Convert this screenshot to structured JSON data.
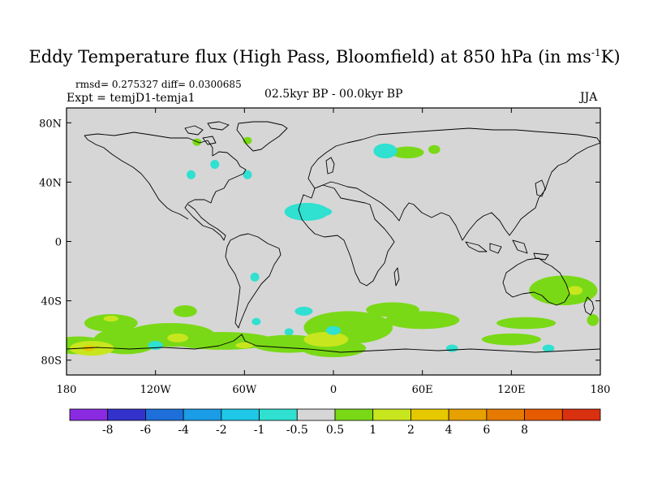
{
  "title_main": "Eddy Temperature flux (High Pass, Bloomfield) at 850 hPa (in ms",
  "title_sup": "-1",
  "title_end": "K)",
  "stats": "rmsd= 0.275327 diff= 0.0300685",
  "experiment": "Expt = temjD1-temja1",
  "period": "02.5kyr BP - 00.0kyr BP",
  "season": "JJA",
  "colors": {
    "background": "#d6d6d6",
    "land_outline": "#000000"
  },
  "chart_data": {
    "type": "heatmap",
    "projection": "cylindrical-equidistant",
    "field": "Eddy temperature flux difference (anomaly)",
    "lon_range": [
      -180,
      180
    ],
    "lat_range": [
      -90,
      90
    ],
    "x_ticks": [
      {
        "value": -180,
        "label": "180"
      },
      {
        "value": -120,
        "label": "120W"
      },
      {
        "value": -60,
        "label": "60W"
      },
      {
        "value": 0,
        "label": "0"
      },
      {
        "value": 60,
        "label": "60E"
      },
      {
        "value": 120,
        "label": "120E"
      },
      {
        "value": 180,
        "label": "180"
      }
    ],
    "y_ticks": [
      {
        "value": 80,
        "label": "80N"
      },
      {
        "value": 40,
        "label": "40N"
      },
      {
        "value": 0,
        "label": "0"
      },
      {
        "value": -40,
        "label": "40S"
      },
      {
        "value": -80,
        "label": "80S"
      }
    ],
    "colorbar": {
      "colors": [
        "#8a2be2",
        "#3333cc",
        "#1e6fd9",
        "#1a9ce6",
        "#1fc7e8",
        "#30e0d0",
        "#d6d6d6",
        "#7ad916",
        "#c8e61e",
        "#e6c800",
        "#e6a000",
        "#e67a00",
        "#e65a00",
        "#d93010"
      ],
      "labels": [
        "-8",
        "-6",
        "-4",
        "-2",
        "-1",
        "-0.5",
        "0.5",
        "1",
        "2",
        "4",
        "6",
        "8"
      ]
    },
    "anomaly_regions": [
      {
        "level": 0.7,
        "lon": 50,
        "lat": 60,
        "rlon": 11,
        "rlat": 4
      },
      {
        "level": -0.7,
        "lon": 35,
        "lat": 61,
        "rlon": 8,
        "rlat": 5
      },
      {
        "level": 0.7,
        "lon": 68,
        "lat": 62,
        "rlon": 4,
        "rlat": 3
      },
      {
        "level": -0.7,
        "lon": -18,
        "lat": 20,
        "rlon": 15,
        "rlat": 6
      },
      {
        "level": -1.0,
        "lon": -8,
        "lat": 20,
        "rlon": 7,
        "rlat": 3
      },
      {
        "level": 0.7,
        "lon": -92,
        "lat": 67,
        "rlon": 3,
        "rlat": 2.5
      },
      {
        "level": 0.7,
        "lon": -58,
        "lat": 68,
        "rlon": 3,
        "rlat": 2.5
      },
      {
        "level": -0.7,
        "lon": -96,
        "lat": 45,
        "rlon": 3,
        "rlat": 3
      },
      {
        "level": -0.7,
        "lon": -80,
        "lat": 52,
        "rlon": 3,
        "rlat": 3
      },
      {
        "level": -0.7,
        "lon": -58,
        "lat": 45,
        "rlon": 3,
        "rlat": 3
      },
      {
        "level": -0.7,
        "lon": -53,
        "lat": -24,
        "rlon": 3,
        "rlat": 3
      },
      {
        "level": -0.7,
        "lon": -52,
        "lat": -54,
        "rlon": 3,
        "rlat": 2.5
      },
      {
        "level": -0.7,
        "lon": -30,
        "lat": -61,
        "rlon": 3,
        "rlat": 2.5
      },
      {
        "level": -0.7,
        "lon": 80,
        "lat": -72,
        "rlon": 4,
        "rlat": 2.5
      },
      {
        "level": -0.7,
        "lon": 145,
        "lat": -72,
        "rlon": 4,
        "rlat": 2.5
      },
      {
        "level": 0.7,
        "lon": 155,
        "lat": -33,
        "rlon": 23,
        "rlat": 10
      },
      {
        "level": 1.5,
        "lon": 163,
        "lat": -33,
        "rlon": 5,
        "rlat": 3
      },
      {
        "level": 0.7,
        "lon": 175,
        "lat": -53,
        "rlon": 4,
        "rlat": 4
      },
      {
        "level": 0.7,
        "lon": -172,
        "lat": -70,
        "rlon": 20,
        "rlat": 6
      },
      {
        "level": 0.7,
        "lon": -140,
        "lat": -67,
        "rlon": 22,
        "rlat": 9
      },
      {
        "level": 0.7,
        "lon": -150,
        "lat": -55,
        "rlon": 18,
        "rlat": 6
      },
      {
        "level": 0.7,
        "lon": -110,
        "lat": -63,
        "rlon": 30,
        "rlat": 8
      },
      {
        "level": 0.7,
        "lon": -75,
        "lat": -67,
        "rlon": 35,
        "rlat": 6
      },
      {
        "level": 0.7,
        "lon": -30,
        "lat": -69,
        "rlon": 25,
        "rlat": 6
      },
      {
        "level": 0.7,
        "lon": 10,
        "lat": -58,
        "rlon": 30,
        "rlat": 11
      },
      {
        "level": 0.7,
        "lon": 60,
        "lat": -53,
        "rlon": 25,
        "rlat": 6
      },
      {
        "level": 0.7,
        "lon": 0,
        "lat": -72,
        "rlon": 22,
        "rlat": 6
      },
      {
        "level": 0.7,
        "lon": 40,
        "lat": -46,
        "rlon": 18,
        "rlat": 5
      },
      {
        "level": 0.7,
        "lon": 130,
        "lat": -55,
        "rlon": 20,
        "rlat": 4
      },
      {
        "level": 0.7,
        "lon": 120,
        "lat": -66,
        "rlon": 20,
        "rlat": 4
      },
      {
        "level": 0.7,
        "lon": -100,
        "lat": -47,
        "rlon": 8,
        "rlat": 4
      },
      {
        "level": 1.5,
        "lon": -163,
        "lat": -72,
        "rlon": 15,
        "rlat": 5
      },
      {
        "level": 2.5,
        "lon": -165,
        "lat": -72,
        "rlon": 4,
        "rlat": 2
      },
      {
        "level": 1.5,
        "lon": -105,
        "lat": -65,
        "rlon": 7,
        "rlat": 3
      },
      {
        "level": 1.5,
        "lon": -150,
        "lat": -52,
        "rlon": 5,
        "rlat": 2
      },
      {
        "level": 1.5,
        "lon": -60,
        "lat": -70,
        "rlon": 6,
        "rlat": 2
      },
      {
        "level": 1.5,
        "lon": -5,
        "lat": -66,
        "rlon": 15,
        "rlat": 5
      },
      {
        "level": -0.7,
        "lon": -120,
        "lat": -70,
        "rlon": 5,
        "rlat": 3
      },
      {
        "level": -0.7,
        "lon": 0,
        "lat": -60,
        "rlon": 5,
        "rlat": 3
      },
      {
        "level": -0.7,
        "lon": -20,
        "lat": -47,
        "rlon": 6,
        "rlat": 3
      }
    ]
  }
}
